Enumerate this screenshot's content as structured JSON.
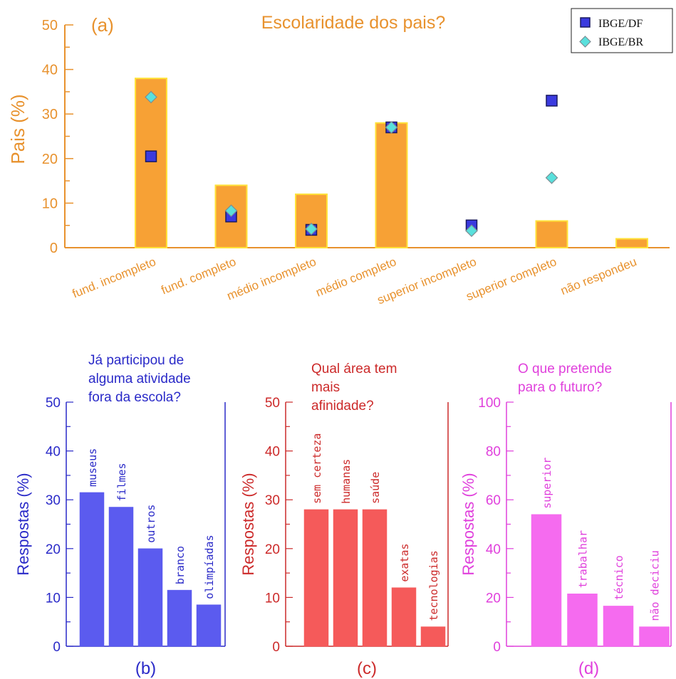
{
  "chart_data": [
    {
      "type": "bar",
      "panel_label": "(a)",
      "title": "Escolaridade dos pais?",
      "xlabel": "",
      "ylabel": "Pais (%)",
      "ylim": [
        0,
        50
      ],
      "yticks": [
        "0",
        "10",
        "20",
        "30",
        "40",
        "50"
      ],
      "categories": [
        "fund. incompleto",
        "fund. completo",
        "médio incompleto",
        "médio completo",
        "superior incompleto",
        "superior completo",
        "não respondeu"
      ],
      "values": [
        38,
        14,
        12,
        28,
        0,
        6,
        2
      ],
      "series": [
        {
          "name": "IBGE/DF",
          "marker": "square",
          "values": [
            20.5,
            7,
            4,
            27,
            5,
            33,
            null
          ]
        },
        {
          "name": "IBGE/BR",
          "marker": "diamond",
          "values": [
            33.8,
            8.3,
            4.2,
            27,
            3.8,
            15.7,
            null
          ]
        }
      ],
      "legend": "top-right",
      "colors": {
        "bar": "#f7a135",
        "bar_edge": "#ffe23a",
        "axis": "#e8922e",
        "df": "#3a3adf",
        "br": "#59e0dc"
      }
    },
    {
      "type": "bar",
      "panel_label": "(b)",
      "title": "Já participou de alguma atividade fora da escola?",
      "ylabel": "Respostas (%)",
      "ylim": [
        0,
        50
      ],
      "yticks": [
        "0",
        "10",
        "20",
        "30",
        "40",
        "50"
      ],
      "categories": [
        "museus",
        "filmes",
        "outros",
        "branco",
        "olimpíadas"
      ],
      "values": [
        31.5,
        28.5,
        20,
        11.5,
        8.5
      ],
      "colors": {
        "bar": "#5b5bef",
        "axis": "#2a2ac8"
      }
    },
    {
      "type": "bar",
      "panel_label": "(c)",
      "title": "Qual área tem mais afinidade?",
      "ylabel": "Respostas (%)",
      "ylim": [
        0,
        50
      ],
      "yticks": [
        "0",
        "10",
        "20",
        "30",
        "40",
        "50"
      ],
      "categories": [
        "sem certeza",
        "humanas",
        "saúde",
        "exatas",
        "tecnologias"
      ],
      "values": [
        28,
        28,
        28,
        12,
        4
      ],
      "colors": {
        "bar": "#f55a5a",
        "axis": "#cc2a2a"
      }
    },
    {
      "type": "bar",
      "panel_label": "(d)",
      "title": "O que pretende para o futuro?",
      "ylabel": "Respostas (%)",
      "ylim": [
        0,
        100
      ],
      "yticks": [
        "0",
        "20",
        "40",
        "60",
        "80",
        "100"
      ],
      "categories": [
        "superior",
        "trabalhar",
        "técnico",
        "não deciciu"
      ],
      "values": [
        54,
        21.5,
        16.5,
        8
      ],
      "colors": {
        "bar": "#f56bef",
        "axis": "#e040dc"
      }
    }
  ]
}
